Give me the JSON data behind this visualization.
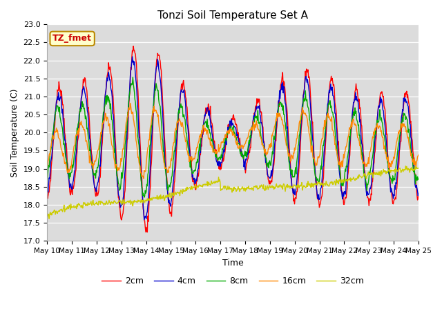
{
  "title": "Tonzi Soil Temperature Set A",
  "xlabel": "Time",
  "ylabel": "Soil Temperature (C)",
  "ylim": [
    17.0,
    23.0
  ],
  "yticks": [
    17.0,
    17.5,
    18.0,
    18.5,
    19.0,
    19.5,
    20.0,
    20.5,
    21.0,
    21.5,
    22.0,
    22.5,
    23.0
  ],
  "xtick_labels": [
    "May 10",
    "May 11",
    "May 12",
    "May 13",
    "May 14",
    "May 15",
    "May 16",
    "May 17",
    "May 18",
    "May 19",
    "May 20",
    "May 21",
    "May 22",
    "May 23",
    "May 24",
    "May 25"
  ],
  "legend_labels": [
    "2cm",
    "4cm",
    "8cm",
    "16cm",
    "32cm"
  ],
  "colors": {
    "2cm": "#ff0000",
    "4cm": "#0000cc",
    "8cm": "#00aa00",
    "16cm": "#ff8800",
    "32cm": "#cccc00"
  },
  "annotation_text": "TZ_fmet",
  "annotation_color": "#cc0000",
  "annotation_bg": "#ffffcc",
  "annotation_border": "#bb8800",
  "plot_bg_color": "#dcdcdc",
  "fig_bg_color": "#ffffff",
  "linewidth": 1.0
}
